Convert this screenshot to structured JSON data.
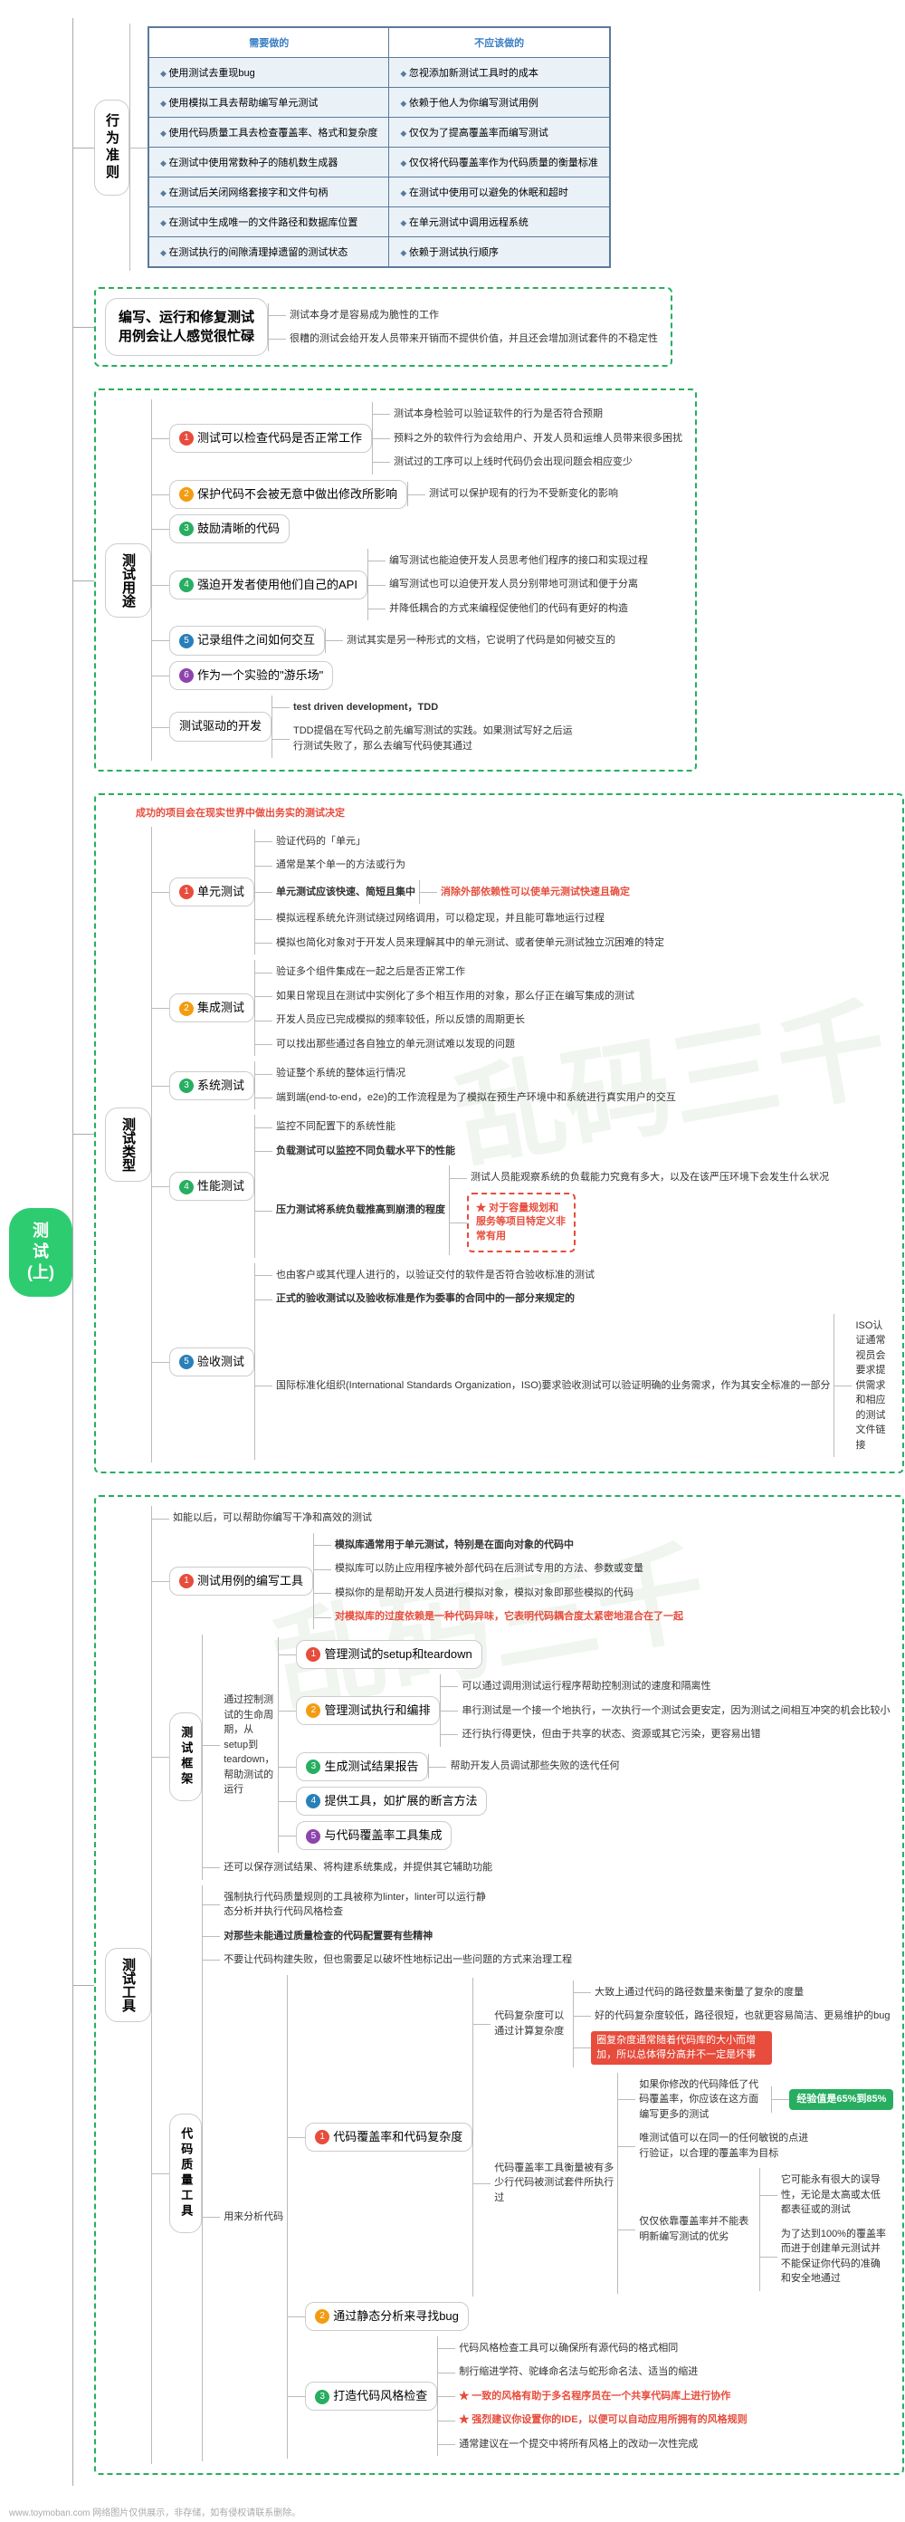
{
  "root": "测试\n(上)",
  "watermark": "乱码三千",
  "footer": "www.toymoban.com 网络图片仅供展示，非存储，如有侵权请联系删除。",
  "behavior": {
    "title": "行为准则",
    "header_do": "需要做的",
    "header_dont": "不应该做的",
    "rows": [
      [
        "使用测试去重现bug",
        "忽视添加新测试工具时的成本"
      ],
      [
        "使用模拟工具去帮助编写单元测试",
        "依赖于他人为你编写测试用例"
      ],
      [
        "使用代码质量工具去检查覆盖率、格式和复杂度",
        "仅仅为了提高覆盖率而编写测试"
      ],
      [
        "在测试中使用常数种子的随机数生成器",
        "仅仅将代码覆盖率作为代码质量的衡量标准"
      ],
      [
        "在测试后关闭网络套接字和文件句柄",
        "在测试中使用可以避免的休眠和超时"
      ],
      [
        "在测试中生成唯一的文件路径和数据库位置",
        "在单元测试中调用远程系统"
      ],
      [
        "在测试执行的间隙清理掉遗留的测试状态",
        "依赖于测试执行顺序"
      ]
    ]
  },
  "busy": {
    "title": "编写、运行和修复测试用例会让人感觉很忙碌",
    "notes": [
      "测试本身才是容易成为脆性的工作",
      "很糟的测试会给开发人员带来开销而不提供价值，并且还会增加测试套件的不稳定性"
    ]
  },
  "purpose": {
    "title": "测试用途",
    "items": [
      {
        "n": "1",
        "t": "测试可以检查代码是否正常工作",
        "c": "num-r",
        "sub": [
          "测试本身检验可以验证软件的行为是否符合预期",
          "预料之外的软件行为会给用户、开发人员和运维人员带来很多困扰",
          "测试过的工序可以上线时代码仍会出现问题会相应变少"
        ]
      },
      {
        "n": "2",
        "t": "保护代码不会被无意中做出修改所影响",
        "c": "num-o",
        "sub": [
          "测试可以保护现有的行为不受新变化的影响"
        ]
      },
      {
        "n": "3",
        "t": "鼓励清晰的代码",
        "c": "num-g",
        "sub": []
      },
      {
        "n": "4",
        "t": "强迫开发者使用他们自己的API",
        "c": "num-g",
        "sub": [
          "编写测试也能迫使开发人员思考他们程序的接口和实现过程",
          "编写测试也可以迫使开发人员分别带地可测试和便于分离",
          "并降低耦合的方式来编程促使他们的代码有更好的构造"
        ]
      },
      {
        "n": "5",
        "t": "记录组件之间如何交互",
        "c": "num-b",
        "sub": [
          "测试其实是另一种形式的文档，它说明了代码是如何被交互的"
        ]
      },
      {
        "n": "6",
        "t": "作为一个实验的\"游乐场\"",
        "c": "num-p",
        "sub": []
      }
    ],
    "tdd_label": "测试驱动的开发",
    "tdd_title": "test driven development，TDD",
    "tdd_note": "TDD提倡在写代码之前先编写测试的实践。如果测试写好之后运行测试失败了，那么去编写代码使其通过"
  },
  "types": {
    "title": "测试类型",
    "headline": "成功的项目会在现实世界中做出务实的测试决定",
    "items": [
      {
        "n": "1",
        "t": "单元测试",
        "c": "num-r",
        "notes": [
          "验证代码的「单元」",
          "通常是某个单一的方法或行为",
          "单元测试应该快速、简短且集中",
          "模拟远程系统允许测试绕过网络调用，可以稳定现，并且能可靠地运行过程",
          "模拟也简化对象对于开发人员来理解其中的单元测试、或者使单元测试独立沉困难的特定"
        ],
        "highlight": "消除外部依赖性可以使单元测试快速且确定"
      },
      {
        "n": "2",
        "t": "集成测试",
        "c": "num-o",
        "notes": [
          "验证多个组件集成在一起之后是否正常工作",
          "如果日常现且在测试中实例化了多个相互作用的对象，那么仔正在编写集成的测试",
          "开发人员应已完成模拟的频率较低，所以反馈的周期更长",
          "可以找出那些通过各自独立的单元测试难以发现的问题"
        ]
      },
      {
        "n": "3",
        "t": "系统测试",
        "c": "num-g",
        "notes": [
          "验证整个系统的整体运行情况",
          "端到端(end-to-end，e2e)的工作流程是为了模拟在预生产环境中和系统进行真实用户的交互"
        ]
      },
      {
        "n": "4",
        "t": "性能测试",
        "c": "num-g",
        "notes": [
          "监控不同配置下的系统性能",
          "负载测试可以监控不同负载水平下的性能",
          "压力测试将系统负载推高到崩溃的程度"
        ],
        "side": [
          "测试人员能观察系统的负载能力究竟有多大，以及在该严压环境下会发生什么状况"
        ],
        "callout": "对于容量规划和服务等项目特定义非常有用"
      },
      {
        "n": "5",
        "t": "验收测试",
        "c": "num-b",
        "notes": [
          "也由客户或其代理人进行的，以验证交付的软件是否符合验收标准的测试",
          "正式的验收测试以及验收标准是作为委事的合同中的一部分来规定的",
          "国际标准化组织(International Standards Organization，ISO)要求验收测试可以验证明确的业务需求，作为其安全标准的一部分"
        ],
        "side": "ISO认证通常视员会要求提供需求和相应的测试文件链接"
      }
    ]
  },
  "tools": {
    "title": "测试工具",
    "head_note": "如能以后，可以帮助你编写干净和高效的测试",
    "item1": {
      "n": "1",
      "t": "测试用例的编写工具",
      "c": "num-r",
      "notes": [
        "模拟库通常用于单元测试，特别是在面向对象的代码中",
        "模拟库可以防止应用程序被外部代码在后测试专用的方法、参数或变量",
        "模拟你的是帮助开发人员进行模拟对象，模拟对象即那些模拟的代码",
        "对模拟库的过度依赖是一种代码异味，它表明代码耦合度太紧密地混合在了一起"
      ]
    },
    "framework": {
      "label": "测试框架",
      "desc": "通过控制测试的生命周期，从setup到teardown，帮助测试的运行",
      "items": [
        {
          "n": "1",
          "t": "管理测试的setup和teardown",
          "c": "num-r"
        },
        {
          "n": "2",
          "t": "管理测试执行和编排",
          "c": "num-o",
          "sub": [
            "可以通过调用测试运行程序帮助控制测试的速度和隔离性",
            "串行测试是一个接一个地执行，一次执行一个测试会更安定，因为测试之间相互冲突的机会比较小",
            "还行执行得更快，但由于共享的状态、资源或其它污染，更容易出错"
          ]
        },
        {
          "n": "3",
          "t": "生成测试结果报告",
          "c": "num-g",
          "sub": [
            "帮助开发人员调试那些失败的迭代任何"
          ]
        },
        {
          "n": "4",
          "t": "提供工具，如扩展的断言方法",
          "c": "num-b"
        },
        {
          "n": "5",
          "t": "与代码覆盖率工具集成",
          "c": "num-p"
        }
      ],
      "tail": "还可以保存测试结果、将构建系统集成，并提供其它辅助功能"
    },
    "quality": {
      "label": "代码质量工具",
      "lint_intro": "强制执行代码质量规则的工具被称为linter，linter可以运行静态分析并执行代码风格检查",
      "lint_bold": "对那些未能通过质量检查的代码配置要有些精神",
      "lint_note": "不要让代码构建失败，但也需要足以破坏性地标记出一些问题的方式来治理工程",
      "cov": {
        "n": "1",
        "t": "代码覆盖率和代码复杂度",
        "c": "num-r",
        "intro": "用来分析代码",
        "complex_label": "代码复杂度可以通过计算复杂度",
        "complex_sub": [
          "大致上通过代码的路径数量来衡量了复杂的度量",
          "好的代码复杂度较低，路径很短，也就更容易简洁、更易维护的bug"
        ],
        "complex_red": "圈复杂度通常随着代码库的大小而增加，所以总体得分高并不一定是坏事",
        "cov_label": "代码覆盖率工具衡量被有多少行代码被测试套件所执行过",
        "cov_sub_intro": "如果你修改的代码降低了代码覆盖率，你应该在这方面编写更多的测试",
        "cov_green": "经验值是65%到85%",
        "cov_sub2": "唯测试值可以在同一的任何敏锐的点进行验证，以合理的覆盖率为目标",
        "cov_warn": "仅仅依靠覆盖率并不能表明新编写测试的优劣",
        "cov_warn_sub": [
          "它可能永有很大的误导性，无论是太高或太低都表征或的测试",
          "为了达到100%的覆盖率而进于创建单元测试并不能保证你代码的准确和安全地通过"
        ]
      },
      "static": {
        "n": "2",
        "t": "通过静态分析来寻找bug",
        "c": "num-o"
      },
      "style": {
        "n": "3",
        "t": "打造代码风格检查",
        "c": "num-g",
        "notes": [
          "代码风格检查工具可以确保所有源代码的格式相同",
          "制行缩进学符、驼峰命名法与蛇形命名法、适当的缩进"
        ],
        "stars": [
          "一致的风格有助于多名程序员在一个共享代码库上进行协作",
          "强烈建议你设置你的IDE，以便可以自动应用所拥有的风格规则"
        ],
        "tail": "通常建议在一个提交中将所有风格上的改动一次性完成"
      }
    }
  }
}
